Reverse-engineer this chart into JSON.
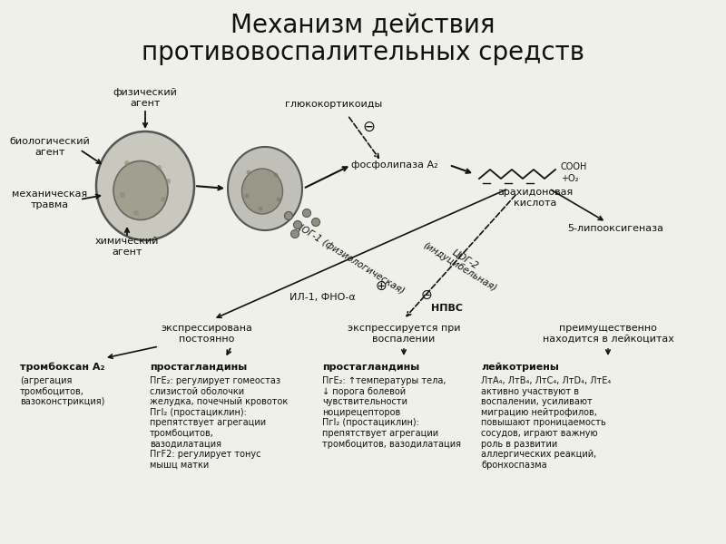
{
  "title_line1": "Механизм действия",
  "title_line2": "противовоспалительных средств",
  "title_fontsize": 20,
  "bg_color": "#f0f0eb",
  "text_color": "#111111",
  "labels": {
    "fizicheskiy": "физический\nагент",
    "biologicheskiy": "биологический\nагент",
    "mekhanicheskaya": "механическая\nтравма",
    "khimicheskiy": "химический\nагент",
    "glyukokortikoid": "глюкокортикоиды",
    "fosfolipaza": "фосфолипаза А₂",
    "arakhi": "арахидоновая\nкислота",
    "tsog1": "ЦОГ-1 (физиологическая)",
    "tsog2": "ЦОГ-2\n(индуцибельная)",
    "il1": "ИЛ-1, ФНО-α",
    "npvs": "НПВС",
    "lipooksi": "5-липооксигеназа",
    "expr_postoyanno": "экспрессирована\nпостоянно",
    "expr_pri_vospalenii": "экспрессируется при\nвоспалении",
    "preimushch": "преимущественно\nнаходится в лейкоцитах",
    "tromboxan_title": "тромбоксан А₂",
    "tromboxan_body": "(агрегация\nтромбоцитов,\nвазоконстрикция)",
    "prosta1_title": "простагландины",
    "prosta1_body": "ПгЕ₂: регулирует гомеостаз\nслизистой оболочки\nжелудка, почечный кровоток\nПгI₂ (простациклин):\nпрепятствует агрегации\nтромбоцитов,\nвазодилатация\nПгF2: регулирует тонус\nмышц матки",
    "prosta2_title": "простагландины",
    "prosta2_body": "ПгЕ₂: ↑температуры тела,\n↓ порога болевой\nчувствительности\nноцирецепторов\nПгI₂ (простациклин):\nпрепятствует агрегации\nтромбоцитов, вазодилатация",
    "leykotrieny_title": "лейкотриены",
    "leykotrieny_body": "ЛтА₄, ЛтВ₄, ЛтС₄, ЛтD₄, ЛтЕ₄\nактивно участвуют в\nвоспалении, усиливают\nмиграцию нейтрофилов,\nповышают проницаемость\nсосудов, играют важную\nроль в развитии\nаллергических реакций,\nбронхоспазма"
  },
  "minus_sign": "⊖",
  "plus_sign": "⊕"
}
